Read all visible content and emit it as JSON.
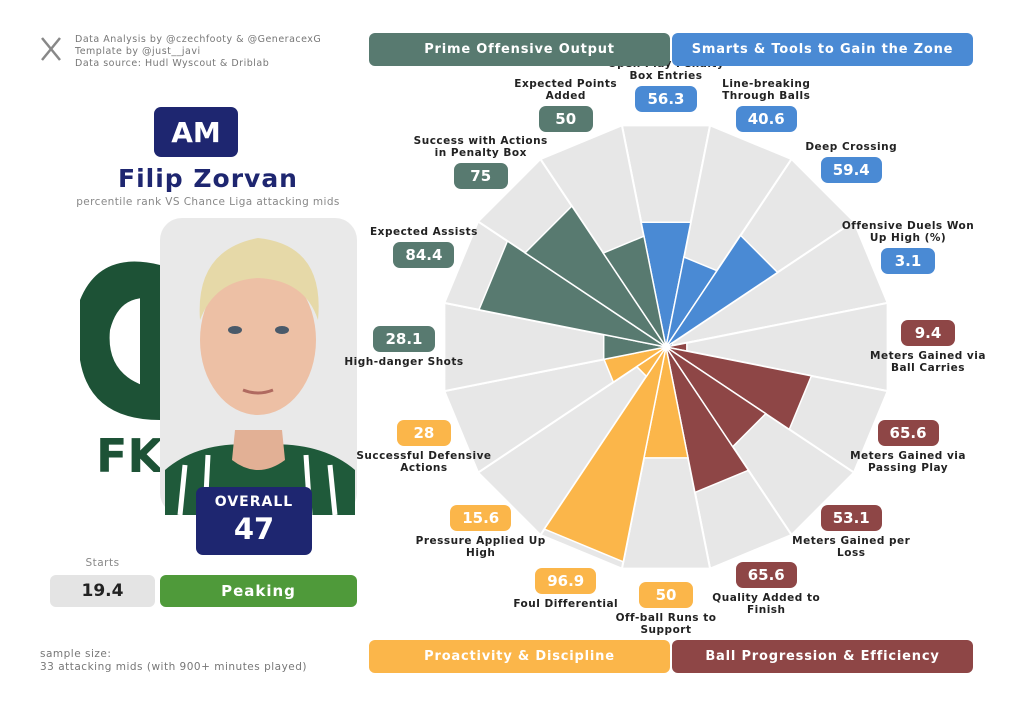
{
  "credits": [
    "Data Analysis by @czechfooty & @GeneracexG",
    "Template by @just__javi",
    "Data source: Hudl Wyscout & Driblab"
  ],
  "position": "AM",
  "player": "Filip Zorvan",
  "subtitle": "percentile rank VS Chance Liga attacking mids",
  "overall": {
    "label": "OVERALL",
    "value": 47
  },
  "starts": {
    "label": "Starts",
    "value": 19.4
  },
  "form": "Peaking",
  "sample_size": [
    "sample size:",
    "33 attacking mids (with 900+ minutes played)"
  ],
  "chart_data": {
    "type": "pizza",
    "categories": [
      "Open Play Penalty Box Entries",
      "Line-breaking Through Balls",
      "Deep Crossing",
      "Offensive Duels Won Up High (%)",
      "Meters Gained via Ball Carries",
      "Meters Gained via Passing Play",
      "Meters Gained per Loss",
      "Quality Added to Finish",
      "Off-ball Runs to Support",
      "Foul Differential",
      "Pressure Applied Up High",
      "Successful Defensive Actions",
      "High-danger Shots",
      "Expected Assists",
      "Success with Actions in Penalty Box",
      "Expected Points Added"
    ],
    "values": [
      56.3,
      40.6,
      59.4,
      3.1,
      9.4,
      65.6,
      53.1,
      65.6,
      50,
      96.9,
      15.6,
      28,
      28.1,
      84.4,
      75,
      50
    ],
    "colors": [
      "#4a8ad4",
      "#4a8ad4",
      "#4a8ad4",
      "#4a8ad4",
      "#8e4646",
      "#8e4646",
      "#8e4646",
      "#8e4646",
      "#fbb64a",
      "#fbb64a",
      "#fbb64a",
      "#fbb64a",
      "#587a70",
      "#587a70",
      "#587a70",
      "#587a70"
    ],
    "rlim": [
      0,
      100
    ],
    "legend": [
      {
        "name": "Prime Offensive Output",
        "color": "#587a70"
      },
      {
        "name": "Smarts & Tools to Gain the Zone",
        "color": "#4a8ad4"
      },
      {
        "name": "Proactivity & Discipline",
        "color": "#fbb64a"
      },
      {
        "name": "Ball Progression & Efficiency",
        "color": "#8e4646"
      }
    ]
  }
}
